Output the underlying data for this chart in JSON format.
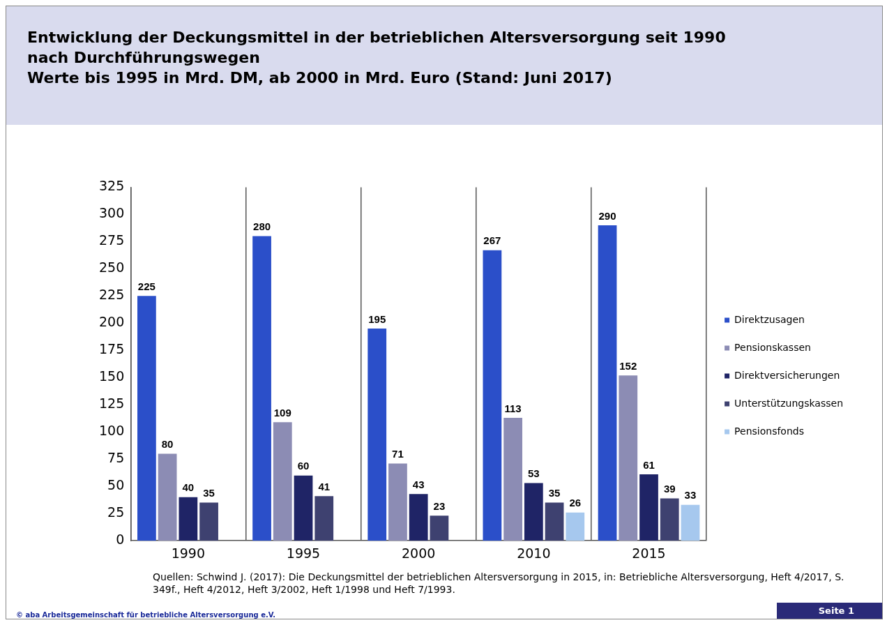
{
  "chart_data": {
    "type": "bar",
    "title": "Entwicklung der Deckungsmittel in der betrieblichen Altersversorgung seit 1990 nach Durchführungswegen",
    "subtitle": "Werte bis 1995 in Mrd. DM, ab 2000 in Mrd. Euro (Stand: Juni 2017)",
    "categories": [
      "1990",
      "1995",
      "2000",
      "2010",
      "2015"
    ],
    "series": [
      {
        "name": "Direktzusagen",
        "color": "#2b4fc9",
        "values": [
          225,
          280,
          195,
          267,
          290
        ]
      },
      {
        "name": "Pensionskassen",
        "color": "#8c8cb4",
        "values": [
          80,
          109,
          71,
          113,
          152
        ]
      },
      {
        "name": "Direktversicherungen",
        "color": "#1f2466",
        "values": [
          40,
          60,
          43,
          53,
          61
        ]
      },
      {
        "name": "Unterstützungskassen",
        "color": "#3e4170",
        "values": [
          35,
          41,
          23,
          35,
          39
        ]
      },
      {
        "name": "Pensionsfonds",
        "color": "#a6c8ee",
        "values": [
          null,
          null,
          null,
          26,
          33
        ]
      }
    ],
    "ylim": [
      0,
      325
    ],
    "yticks": [
      0,
      25,
      50,
      75,
      100,
      125,
      150,
      175,
      200,
      225,
      250,
      275,
      300,
      325
    ],
    "grid": "x",
    "legend": "right",
    "data_labels": true,
    "annotations": [
      "Quellen: Schwind J. (2017): Die Deckungsmittel der betrieblichen Altersversorgung in 2015, in: Betriebliche Altersversorgung, Heft 4/2017, S. 349f., Heft 4/2012, Heft 3/2002, Heft 1/1998 und Heft 7/1993.",
      "© aba Arbeitsgemeinschaft für betriebliche Altersversorgung e.V.",
      "Seite 1"
    ]
  }
}
